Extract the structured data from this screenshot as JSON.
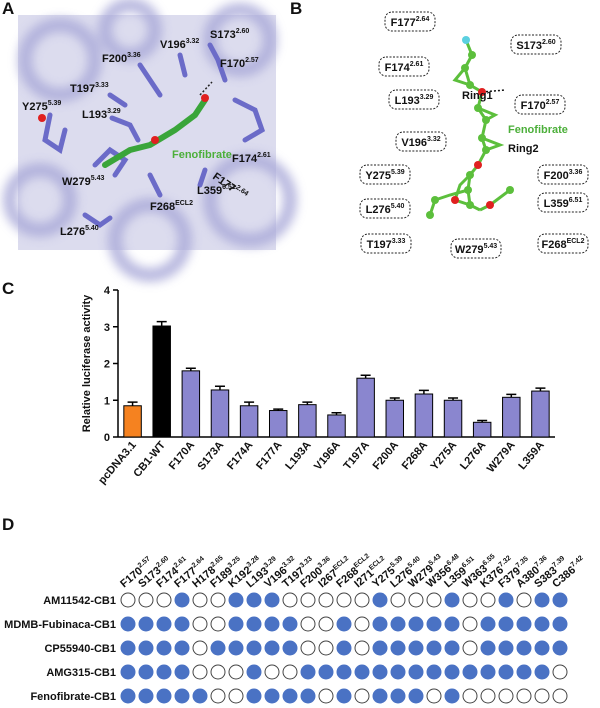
{
  "panel_labels": [
    "A",
    "B",
    "C",
    "D"
  ],
  "panel_a": {
    "residues": [
      {
        "name": "S173",
        "pos": "2.60"
      },
      {
        "name": "F200",
        "pos": "3.36"
      },
      {
        "name": "V196",
        "pos": "3.32"
      },
      {
        "name": "F170",
        "pos": "2.57"
      },
      {
        "name": "T197",
        "pos": "3.33"
      },
      {
        "name": "L193",
        "pos": "3.29"
      },
      {
        "name": "Y275",
        "pos": "5.39"
      },
      {
        "name": "F177",
        "pos": "2.64"
      },
      {
        "name": "F174",
        "pos": "2.61"
      },
      {
        "name": "W279",
        "pos": "5.43"
      },
      {
        "name": "F268",
        "pos": "ECL2"
      },
      {
        "name": "L359",
        "pos": "6.51"
      },
      {
        "name": "L276",
        "pos": "5.40"
      }
    ],
    "ligand": "Fenofibrate"
  },
  "panel_b": {
    "residues": [
      {
        "name": "F177",
        "pos": "2.64"
      },
      {
        "name": "S173",
        "pos": "2.60"
      },
      {
        "name": "F174",
        "pos": "2.61"
      },
      {
        "name": "L193",
        "pos": "3.29"
      },
      {
        "name": "F170",
        "pos": "2.57"
      },
      {
        "name": "V196",
        "pos": "3.32"
      },
      {
        "name": "Y275",
        "pos": "5.39"
      },
      {
        "name": "F200",
        "pos": "3.36"
      },
      {
        "name": "L276",
        "pos": "5.40"
      },
      {
        "name": "L359",
        "pos": "6.51"
      },
      {
        "name": "T197",
        "pos": "3.33"
      },
      {
        "name": "W279",
        "pos": "5.43"
      },
      {
        "name": "F268",
        "pos": "ECL2"
      }
    ],
    "ring1": "Ring1",
    "ring2": "Ring2",
    "ligand": "Fenofibrate"
  },
  "chart_data": {
    "type": "bar",
    "y_label": "Relative luciferase activity",
    "categories": [
      "pcDNA3.1",
      "CB1-WT",
      "F170A",
      "S173A",
      "F174A",
      "F177A",
      "L193A",
      "V196A",
      "T197A",
      "F200A",
      "F268A",
      "Y275A",
      "L276A",
      "W279A",
      "L359A"
    ],
    "values": [
      0.85,
      3.02,
      1.8,
      1.28,
      0.85,
      0.72,
      0.88,
      0.6,
      1.6,
      1.0,
      1.17,
      1.0,
      0.4,
      1.08,
      1.25
    ],
    "errors": [
      0.1,
      0.12,
      0.07,
      0.1,
      0.1,
      0.04,
      0.07,
      0.06,
      0.08,
      0.06,
      0.1,
      0.06,
      0.05,
      0.08,
      0.08
    ],
    "colors": [
      "#f58220",
      "#000000",
      "#8a86cf",
      "#8a86cf",
      "#8a86cf",
      "#8a86cf",
      "#8a86cf",
      "#8a86cf",
      "#8a86cf",
      "#8a86cf",
      "#8a86cf",
      "#8a86cf",
      "#8a86cf",
      "#8a86cf",
      "#8a86cf"
    ],
    "ylim": [
      0,
      4
    ],
    "yticks": [
      0,
      1,
      2,
      3,
      4
    ]
  },
  "panel_d": {
    "residues": [
      {
        "name": "F170",
        "pos": "2.57"
      },
      {
        "name": "S173",
        "pos": "2.60"
      },
      {
        "name": "F174",
        "pos": "2.61"
      },
      {
        "name": "F177",
        "pos": "2.64"
      },
      {
        "name": "H178",
        "pos": "2.65"
      },
      {
        "name": "F189",
        "pos": "3.25"
      },
      {
        "name": "K192",
        "pos": "3.28"
      },
      {
        "name": "L193",
        "pos": "3.29"
      },
      {
        "name": "V196",
        "pos": "3.32"
      },
      {
        "name": "T197",
        "pos": "3.33"
      },
      {
        "name": "F200",
        "pos": "3.36"
      },
      {
        "name": "I267",
        "pos": "ECL2"
      },
      {
        "name": "F268",
        "pos": "ECL2"
      },
      {
        "name": "I271",
        "pos": "ECL2"
      },
      {
        "name": "Y275",
        "pos": "5.39"
      },
      {
        "name": "L276",
        "pos": "5.40"
      },
      {
        "name": "W279",
        "pos": "5.43"
      },
      {
        "name": "W356",
        "pos": "6.48"
      },
      {
        "name": "L359",
        "pos": "6.51"
      },
      {
        "name": "W363",
        "pos": "6.55"
      },
      {
        "name": "K376",
        "pos": "7.32"
      },
      {
        "name": "F379",
        "pos": "7.35"
      },
      {
        "name": "A380",
        "pos": "7.36"
      },
      {
        "name": "S383",
        "pos": "7.39"
      },
      {
        "name": "C386",
        "pos": "7.42"
      }
    ],
    "filled_color": "#4a72c4",
    "rows": [
      {
        "name": "AM11542-CB1",
        "contacts": [
          false,
          false,
          false,
          true,
          false,
          false,
          true,
          true,
          true,
          false,
          false,
          false,
          false,
          false,
          true,
          false,
          false,
          false,
          true,
          false,
          false,
          true,
          false,
          true,
          true
        ]
      },
      {
        "name": "MDMB-Fubinaca-CB1",
        "contacts": [
          true,
          true,
          true,
          true,
          false,
          false,
          true,
          true,
          true,
          true,
          false,
          false,
          true,
          false,
          true,
          true,
          true,
          true,
          true,
          false,
          true,
          true,
          true,
          true,
          true
        ]
      },
      {
        "name": "CP55940-CB1",
        "contacts": [
          true,
          true,
          true,
          true,
          false,
          true,
          true,
          true,
          true,
          true,
          false,
          false,
          true,
          false,
          true,
          true,
          true,
          true,
          true,
          false,
          true,
          true,
          true,
          true,
          true
        ]
      },
      {
        "name": "AMG315-CB1",
        "contacts": [
          true,
          true,
          true,
          true,
          false,
          false,
          false,
          true,
          false,
          false,
          true,
          true,
          true,
          true,
          true,
          true,
          true,
          true,
          true,
          true,
          true,
          true,
          true,
          true,
          false
        ]
      },
      {
        "name": "Fenofibrate-CB1",
        "contacts": [
          true,
          true,
          true,
          true,
          true,
          false,
          false,
          true,
          true,
          true,
          true,
          false,
          true,
          false,
          true,
          true,
          true,
          false,
          true,
          false,
          false,
          false,
          false,
          false,
          false
        ]
      }
    ]
  }
}
